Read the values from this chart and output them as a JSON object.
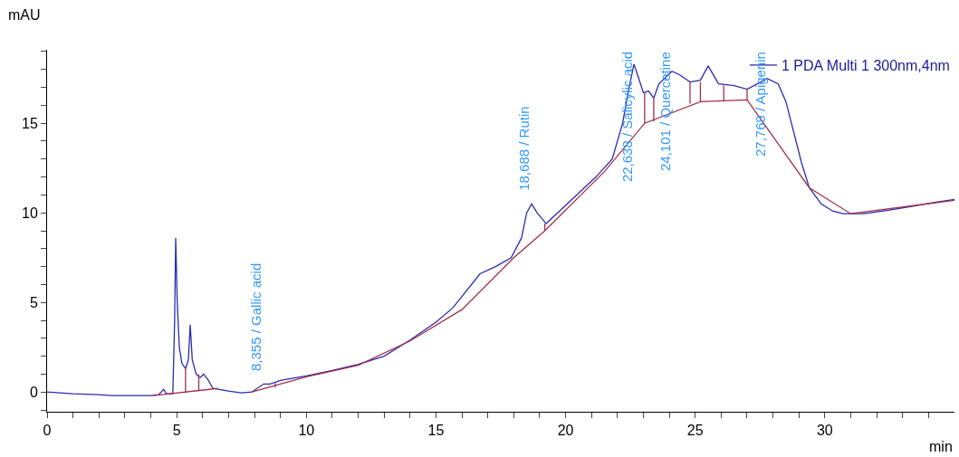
{
  "chart_data": {
    "type": "line",
    "xlabel": "min",
    "ylabel": "mAU",
    "legend": "top right",
    "grid": false,
    "marker": "none",
    "line_style": "solid",
    "xlim": [
      0,
      35
    ],
    "ylim": [
      -1.1,
      19.1
    ],
    "xticks": [
      0,
      {
        "value": 1,
        "label": null
      },
      {
        "value": 2,
        "label": null
      },
      {
        "value": 3,
        "label": null
      },
      {
        "value": 4,
        "label": null
      },
      5,
      {
        "value": 6,
        "label": null
      },
      {
        "value": 7,
        "label": null
      },
      {
        "value": 8,
        "label": null
      },
      {
        "value": 9,
        "label": null
      },
      10,
      {
        "value": 11,
        "label": null
      },
      {
        "value": 12,
        "label": null
      },
      {
        "value": 13,
        "label": null
      },
      {
        "value": 14,
        "label": null
      },
      15,
      {
        "value": 16,
        "label": null
      },
      {
        "value": 17,
        "label": null
      },
      {
        "value": 18,
        "label": null
      },
      {
        "value": 19,
        "label": null
      },
      20,
      {
        "value": 21,
        "label": null
      },
      {
        "value": 22,
        "label": null
      },
      {
        "value": 23,
        "label": null
      },
      {
        "value": 24,
        "label": null
      },
      25,
      {
        "value": 26,
        "label": null
      },
      {
        "value": 27,
        "label": null
      },
      {
        "value": 28,
        "label": null
      },
      {
        "value": 29,
        "label": null
      },
      30,
      {
        "value": 31,
        "label": null
      },
      {
        "value": 32,
        "label": null
      },
      {
        "value": 33,
        "label": null
      },
      {
        "value": 34,
        "label": null
      }
    ],
    "yticks": [
      {
        "value": -1,
        "label": null
      },
      0,
      {
        "value": 1,
        "label": null
      },
      {
        "value": 2,
        "label": null
      },
      {
        "value": 3,
        "label": null
      },
      {
        "value": 4,
        "label": null
      },
      5,
      {
        "value": 6,
        "label": null
      },
      {
        "value": 7,
        "label": null
      },
      {
        "value": 8,
        "label": null
      },
      {
        "value": 9,
        "label": null
      },
      10,
      {
        "value": 11,
        "label": null
      },
      {
        "value": 12,
        "label": null
      },
      {
        "value": 13,
        "label": null
      },
      {
        "value": 14,
        "label": null
      },
      15,
      {
        "value": 16,
        "label": null
      },
      {
        "value": 17,
        "label": null
      },
      {
        "value": 18,
        "label": null
      },
      {
        "value": 19,
        "label": null
      }
    ],
    "series": [
      {
        "name": "1 PDA Multi 1 300nm,4nm",
        "color": "#2b2bb0",
        "x": [
          0,
          1,
          2,
          2.5,
          3,
          4,
          4.3,
          4.5,
          4.6,
          4.85,
          4.92,
          4.96,
          5.02,
          5.1,
          5.2,
          5.34,
          5.45,
          5.52,
          5.6,
          5.75,
          5.9,
          6.04,
          6.2,
          6.4,
          7,
          7.5,
          7.9,
          8.355,
          8.6,
          9,
          10,
          11,
          12,
          13,
          14,
          15,
          15.65,
          16.7,
          17.3,
          17.9,
          18.3,
          18.5,
          18.688,
          18.9,
          19.25,
          19.84,
          20.5,
          21.17,
          21.8,
          22.2,
          22.45,
          22.638,
          22.8,
          23.0,
          23.2,
          23.4,
          23.6,
          24.101,
          24.4,
          24.8,
          25.2,
          25.5,
          25.9,
          26.5,
          27.0,
          27.4,
          27.769,
          28.2,
          28.5,
          28.8,
          29.1,
          29.4,
          29.86,
          30.3,
          30.7,
          31.5,
          32.5,
          33.5,
          34.3,
          35
        ],
        "values": [
          0,
          -0.1,
          -0.15,
          -0.2,
          -0.2,
          -0.2,
          -0.15,
          0.15,
          -0.1,
          -0.1,
          4,
          8.6,
          5,
          2.5,
          1.6,
          1.3,
          1.8,
          3.76,
          1.8,
          1.0,
          0.8,
          1.0,
          0.7,
          0.2,
          0.05,
          -0.05,
          0,
          0.45,
          0.45,
          0.65,
          0.9,
          1.2,
          1.55,
          2.0,
          2.9,
          3.9,
          4.7,
          6.6,
          7.0,
          7.5,
          8.6,
          10.0,
          10.5,
          10.0,
          9.4,
          10.2,
          11.1,
          12.0,
          13.0,
          15.0,
          17.0,
          18.3,
          17.6,
          16.7,
          16.8,
          16.4,
          17.2,
          17.9,
          17.7,
          17.3,
          17.4,
          18.2,
          17.2,
          17.1,
          16.9,
          17.2,
          17.5,
          17.2,
          16.2,
          14.5,
          12.8,
          11.4,
          10.5,
          10.1,
          9.95,
          9.95,
          10.15,
          10.4,
          10.6,
          10.75
        ]
      },
      {
        "color": "#a0304a",
        "x": [
          4.1,
          6.57,
          null,
          7.9,
          10,
          12,
          14,
          16,
          18.0,
          19.2,
          21.5,
          23.05,
          25.2,
          27.0,
          29.4,
          31,
          35,
          null,
          5.34,
          5.34,
          null,
          5.85,
          5.85,
          null,
          8.8,
          8.8,
          null,
          19.2,
          19.2,
          null,
          23.05,
          23.05,
          null,
          23.4,
          23.4,
          null,
          24.8,
          24.8,
          null,
          25.2,
          25.2,
          null,
          26.1,
          26.1,
          null,
          27.0,
          27.0
        ],
        "values": [
          -0.2,
          0.2,
          null,
          0,
          0.85,
          1.5,
          2.85,
          4.6,
          7.5,
          9.0,
          12.3,
          15.0,
          16.2,
          16.3,
          11.4,
          9.95,
          10.7,
          null,
          -0.05,
          1.3,
          null,
          0.05,
          1.0,
          null,
          0.25,
          0.5,
          null,
          9.0,
          9.4,
          null,
          15.0,
          16.7,
          null,
          15.1,
          16.4,
          null,
          16.1,
          17.3,
          null,
          16.2,
          17.3,
          null,
          16.25,
          17.1,
          null,
          16.3,
          16.9
        ]
      }
    ],
    "annotations": [
      {
        "text": "8,355 / Gallic acid",
        "x": 8.355,
        "y": 0.45
      },
      {
        "text": "18,688 / Rutin",
        "x": 18.688,
        "y": 10.5
      },
      {
        "text": "22,638 / Salicylic acid",
        "x": 22.638,
        "y": 18.3
      },
      {
        "text": "24,101 / Quercetine",
        "x": 24.101,
        "y": 17.9
      },
      {
        "text": "27,769 / Apigenin",
        "x": 27.769,
        "y": 17.5
      }
    ]
  }
}
